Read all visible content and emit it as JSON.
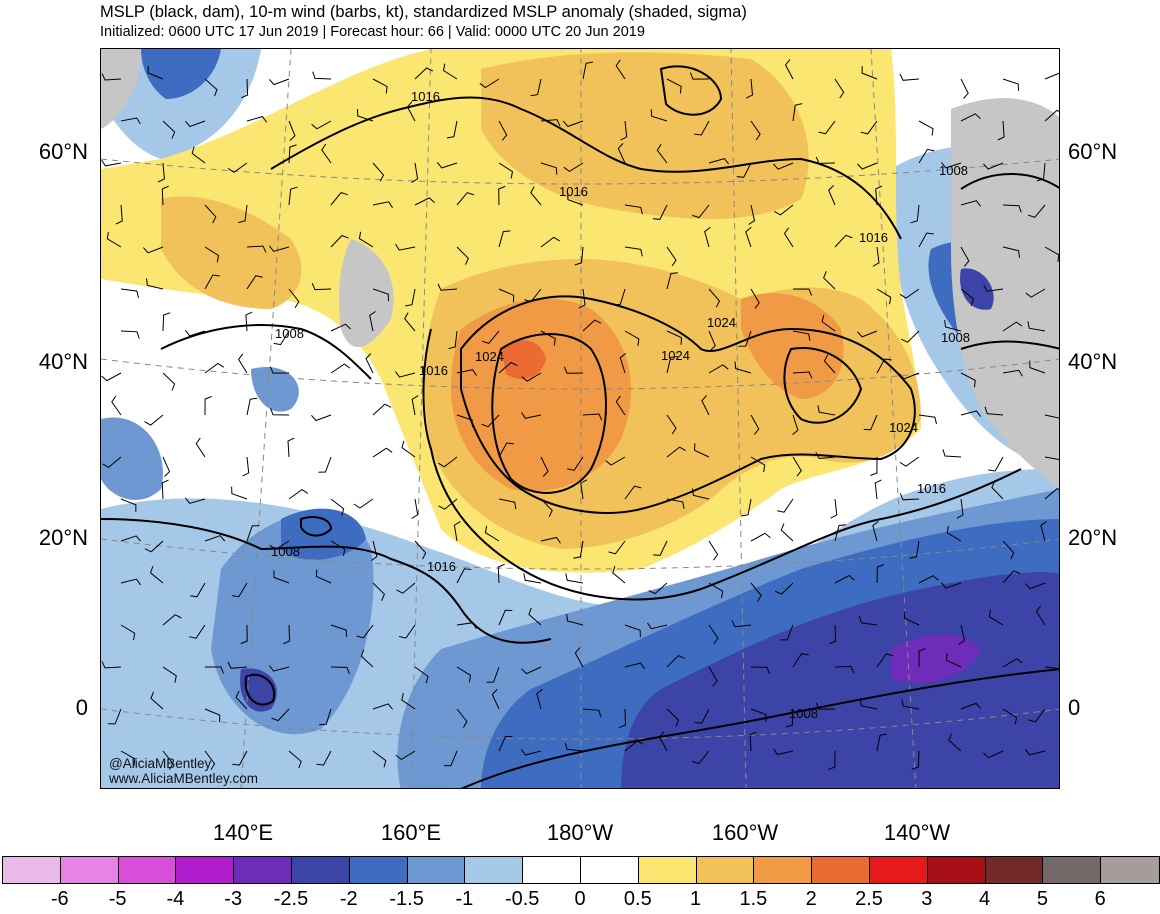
{
  "header": {
    "title": "MSLP (black, dam), 10-m wind (barbs, kt), standardized MSLP anomaly (shaded, sigma)",
    "subtitle": "Initialized: 0600 UTC 17 Jun 2019 | Forecast hour: 66 | Valid: 0000 UTC 20 Jun 2019"
  },
  "map": {
    "lat_labels": [
      "60°N",
      "40°N",
      "20°N",
      "0"
    ],
    "lon_labels": [
      "140°E",
      "160°E",
      "180°W",
      "160°W",
      "140°W"
    ],
    "isobar_labels": [
      "1016",
      "1016",
      "1016",
      "1016",
      "1016",
      "1016",
      "1008",
      "1008",
      "1008",
      "1008",
      "1008",
      "1024",
      "1024",
      "1024",
      "1024"
    ],
    "credit": {
      "handle": "@AliciaMBentley",
      "site": "www.AliciaMBentley.com"
    }
  },
  "colorbar": {
    "labels": [
      "-6",
      "-5",
      "-4",
      "-3",
      "-2.5",
      "-2",
      "-1.5",
      "-1",
      "-0.5",
      "0",
      "0.5",
      "1",
      "1.5",
      "2",
      "2.5",
      "3",
      "4",
      "5",
      "6"
    ],
    "colors": [
      "#eab9e8",
      "#e783e4",
      "#d94fd9",
      "#b21ccf",
      "#6e2cb8",
      "#3c44a8",
      "#3d6cc0",
      "#6d98d2",
      "#a6c8e8",
      "#ffffff",
      "#ffffff",
      "#fbe672",
      "#f2c25a",
      "#f09a45",
      "#ec6a34",
      "#e8191a",
      "#a50f15",
      "#722a2a",
      "#736969",
      "#a69c9c"
    ]
  },
  "palette": {
    "land_gray": "#c6c6c6",
    "contour_line": "#000000",
    "grid_line": "#888888"
  }
}
